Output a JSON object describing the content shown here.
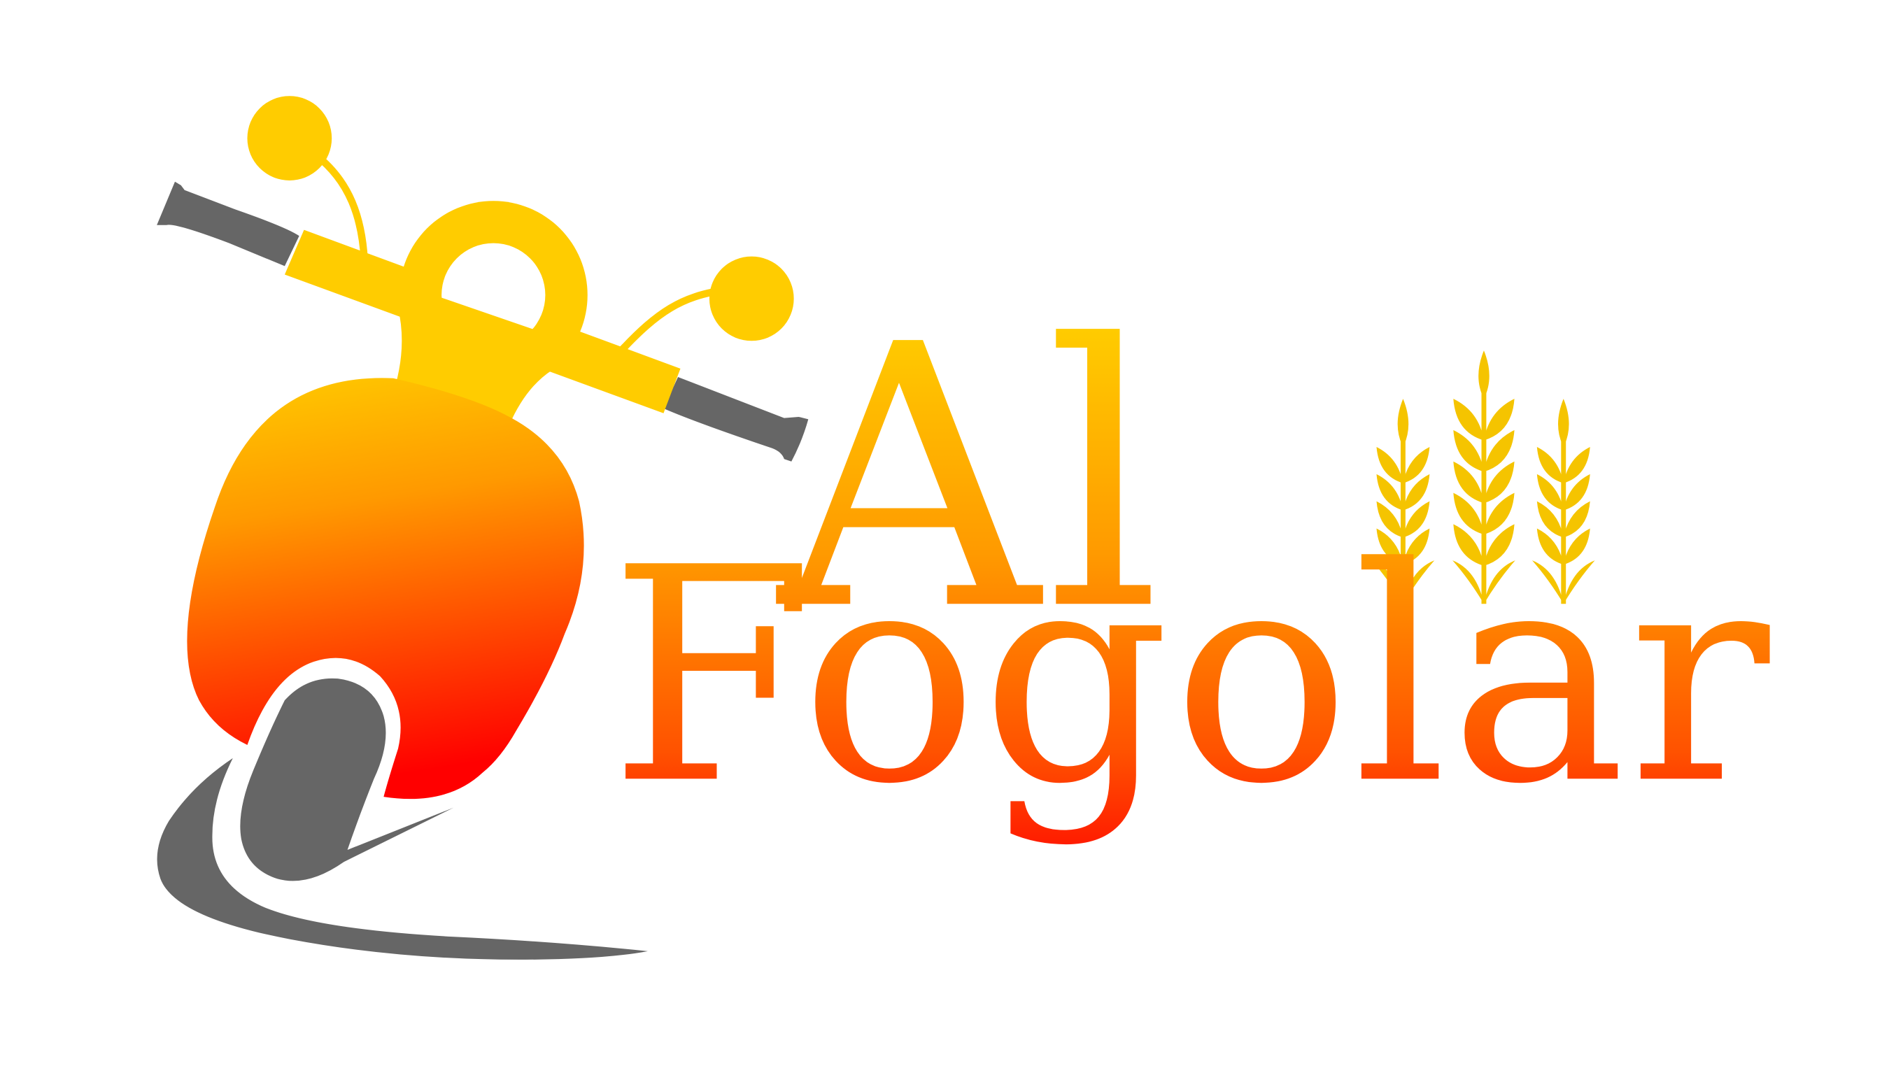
{
  "brand": {
    "name_line1": "Al",
    "name_line2": "Fogolar"
  },
  "icons": {
    "scooter": "scooter-icon",
    "wheat": "wheat-stalks-icon"
  },
  "colors": {
    "background": "#ffffff",
    "yellow": "#ffcc00",
    "orange": "#ff8c00",
    "red": "#ff0000",
    "gray": "#666666",
    "wheat": "#f5c400"
  }
}
